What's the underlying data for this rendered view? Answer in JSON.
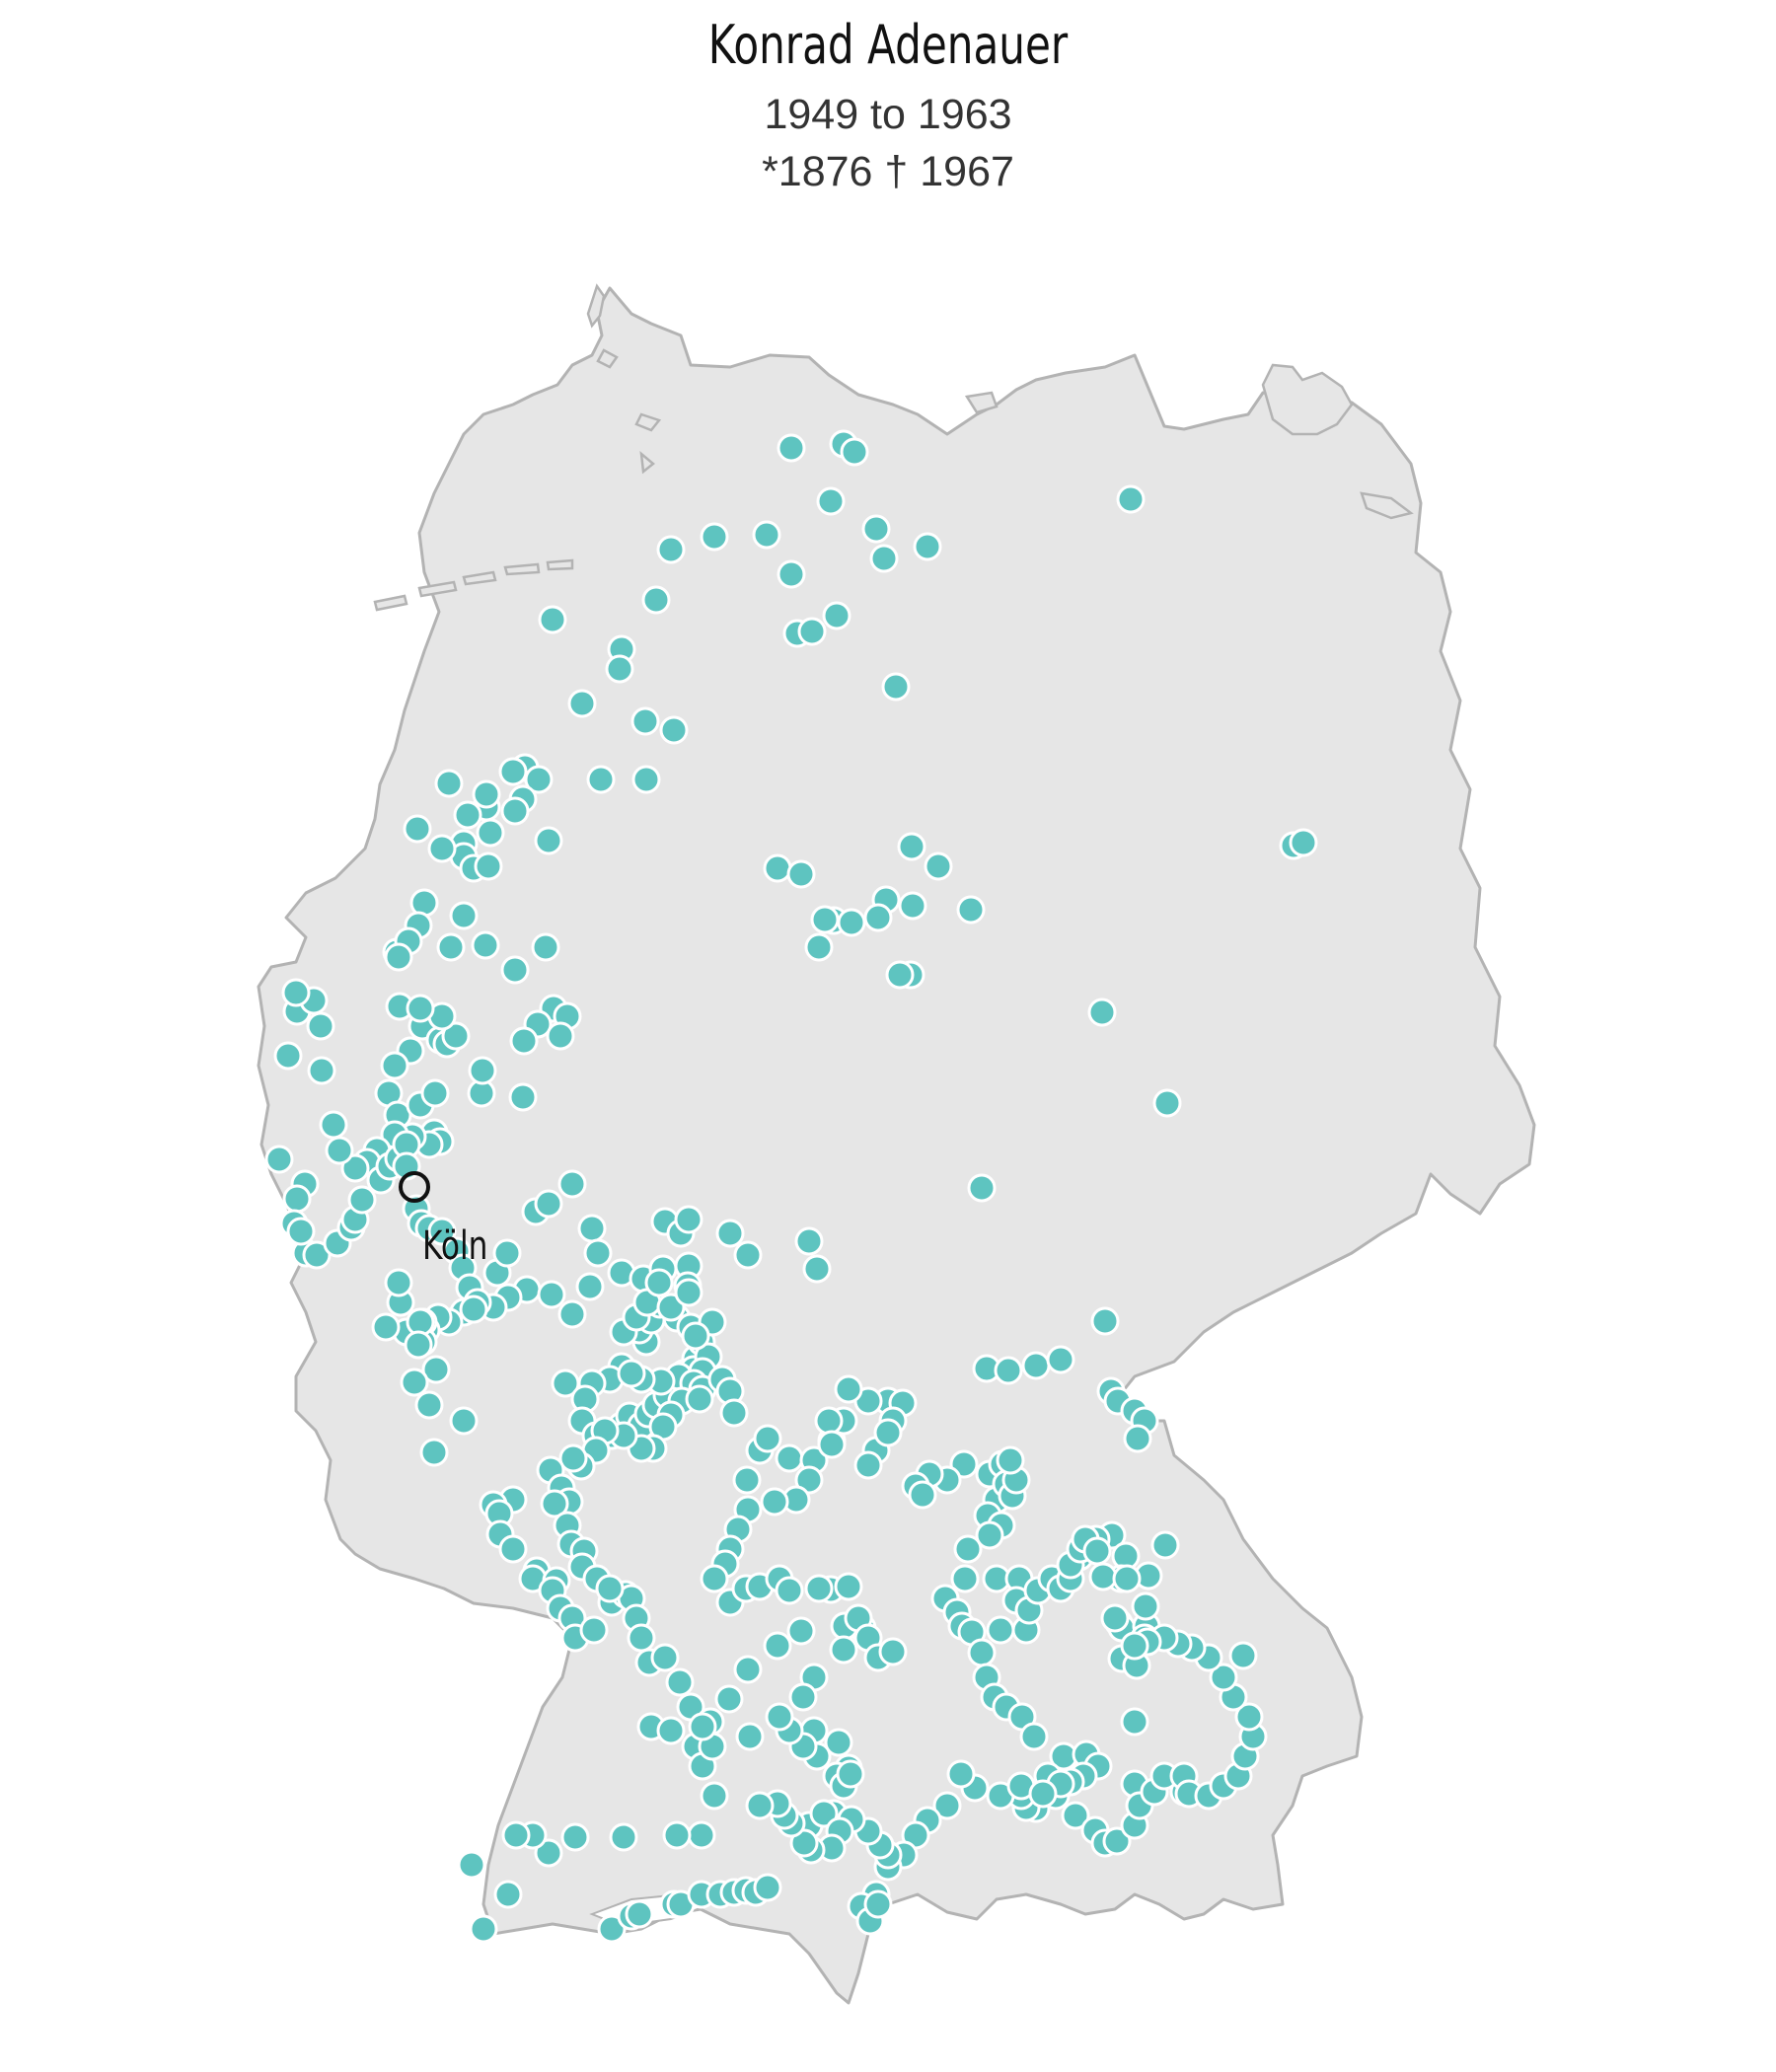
{
  "header": {
    "title": "Konrad Adenauer",
    "term": "1949 to 1963",
    "lifespan": "*1876 † 1967"
  },
  "map": {
    "land_color": "#e6e6e6",
    "border_color": "#b3b3b3",
    "dot_color": "#5ec4c0",
    "dot_outline": "#ffffff",
    "highlight_city": "Köln",
    "highlight_marker": "circle-outline"
  }
}
